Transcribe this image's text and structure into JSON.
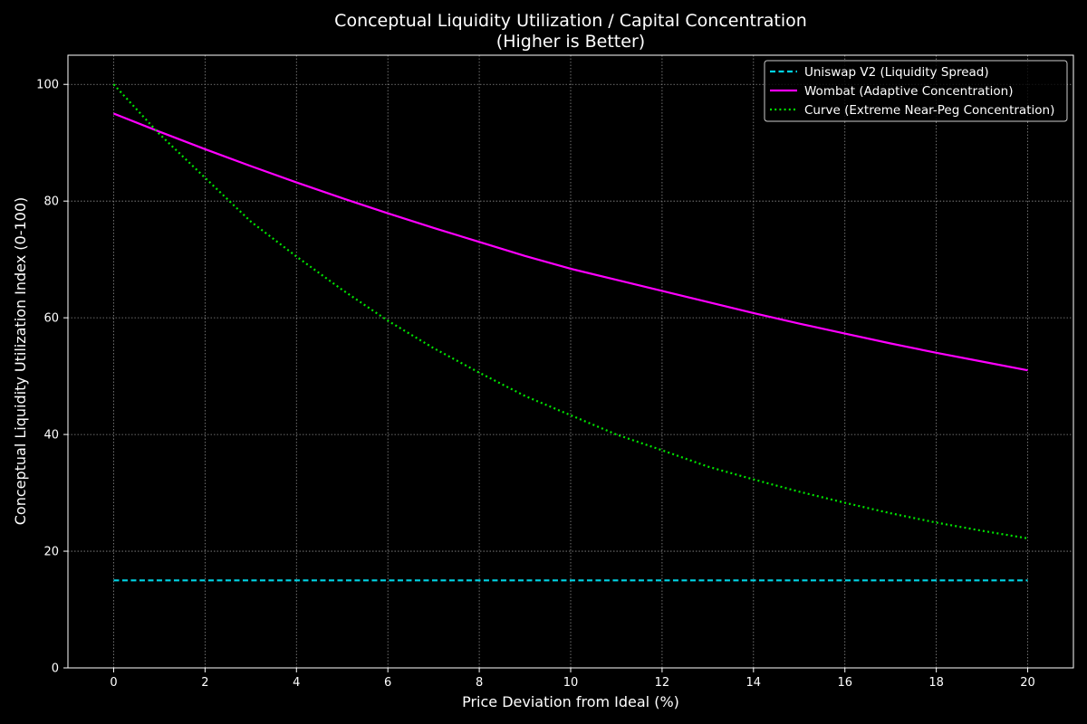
{
  "chart_data": {
    "type": "line",
    "title": "Conceptual Liquidity Utilization / Capital Concentration",
    "subtitle": "(Higher is Better)",
    "xlabel": "Price Deviation from Ideal (%)",
    "ylabel": "Conceptual Liquidity Utilization Index (0-100)",
    "xlim": [
      -1,
      21
    ],
    "ylim": [
      0,
      105
    ],
    "xticks": [
      0,
      2,
      4,
      6,
      8,
      10,
      12,
      14,
      16,
      18,
      20
    ],
    "yticks": [
      0,
      20,
      40,
      60,
      80,
      100
    ],
    "grid": true,
    "legend_position": "top-right",
    "background": "#000000",
    "foreground": "#ffffff",
    "series": [
      {
        "name": "Uniswap V2 (Liquidity Spread)",
        "color": "#00d4e6",
        "style": "dashed",
        "x": [
          0,
          1,
          2,
          3,
          4,
          5,
          6,
          7,
          8,
          9,
          10,
          11,
          12,
          13,
          14,
          15,
          16,
          17,
          18,
          19,
          20
        ],
        "y": [
          15,
          15,
          15,
          15,
          15,
          15,
          15,
          15,
          15,
          15,
          15,
          15,
          15,
          15,
          15,
          15,
          15,
          15,
          15,
          15,
          15
        ]
      },
      {
        "name": "Wombat (Adaptive Concentration)",
        "color": "#ff00ff",
        "style": "solid",
        "x": [
          0,
          1,
          2,
          3,
          4,
          5,
          6,
          7,
          8,
          9,
          10,
          11,
          12,
          13,
          14,
          15,
          16,
          17,
          18,
          19,
          20
        ],
        "y": [
          95,
          91.9,
          88.9,
          86.0,
          83.2,
          80.5,
          77.9,
          75.4,
          73.0,
          70.6,
          68.4,
          66.5,
          64.6,
          62.7,
          60.8,
          59.0,
          57.3,
          55.6,
          54.0,
          52.5,
          51
        ]
      },
      {
        "name": "Curve (Extreme Near-Peg Concentration)",
        "color": "#00e600",
        "style": "dotted",
        "x": [
          0,
          1,
          2,
          3,
          4,
          5,
          6,
          7,
          8,
          9,
          10,
          11,
          12,
          13,
          14,
          15,
          16,
          17,
          18,
          19,
          20
        ],
        "y": [
          100,
          91.5,
          84.0,
          76.5,
          70.5,
          64.8,
          59.5,
          54.8,
          50.6,
          46.6,
          43.3,
          40.0,
          37.3,
          34.5,
          32.3,
          30.2,
          28.3,
          26.5,
          24.9,
          23.5,
          22.2
        ]
      }
    ]
  }
}
